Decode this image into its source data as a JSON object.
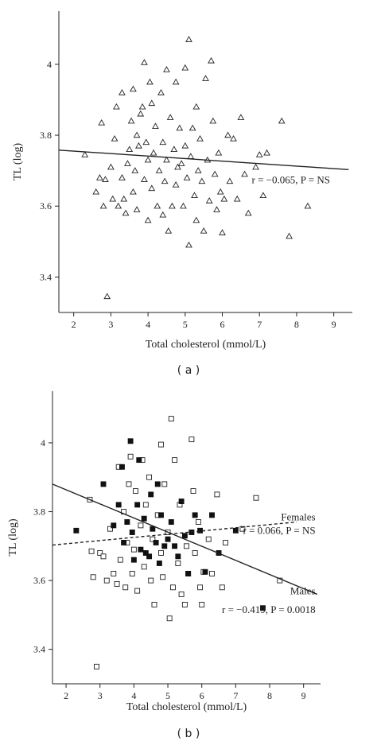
{
  "chart_data": [
    {
      "panel_label": "( a )",
      "type": "scatter",
      "xlabel": "Total cholesterol (mmol/L)",
      "ylabel": "TL (log)",
      "xlim": [
        1.6,
        9.5
      ],
      "ylim": [
        3.3,
        4.15
      ],
      "xticks": [
        "2",
        "3",
        "4",
        "5",
        "6",
        "7",
        "8",
        "9"
      ],
      "yticks": [
        "3.4",
        "3.6",
        "3.8",
        "4"
      ],
      "grid": false,
      "marker": "triangle-open",
      "series": [
        {
          "marker": "triangle-open",
          "points": [
            [
              2.3,
              3.745
            ],
            [
              2.6,
              3.64
            ],
            [
              2.7,
              3.68
            ],
            [
              2.75,
              3.835
            ],
            [
              2.8,
              3.6
            ],
            [
              2.85,
              3.675
            ],
            [
              2.9,
              3.345
            ],
            [
              3.0,
              3.71
            ],
            [
              3.05,
              3.62
            ],
            [
              3.1,
              3.79
            ],
            [
              3.15,
              3.88
            ],
            [
              3.2,
              3.6
            ],
            [
              3.3,
              3.92
            ],
            [
              3.3,
              3.68
            ],
            [
              3.35,
              3.62
            ],
            [
              3.4,
              3.58
            ],
            [
              3.45,
              3.72
            ],
            [
              3.5,
              3.76
            ],
            [
              3.55,
              3.84
            ],
            [
              3.6,
              3.93
            ],
            [
              3.6,
              3.64
            ],
            [
              3.65,
              3.7
            ],
            [
              3.7,
              3.8
            ],
            [
              3.7,
              3.59
            ],
            [
              3.75,
              3.77
            ],
            [
              3.8,
              3.86
            ],
            [
              3.85,
              3.88
            ],
            [
              3.9,
              4.005
            ],
            [
              3.9,
              3.675
            ],
            [
              3.95,
              3.78
            ],
            [
              4.0,
              3.73
            ],
            [
              4.0,
              3.56
            ],
            [
              4.05,
              3.95
            ],
            [
              4.1,
              3.89
            ],
            [
              4.1,
              3.65
            ],
            [
              4.15,
              3.75
            ],
            [
              4.2,
              3.825
            ],
            [
              4.25,
              3.6
            ],
            [
              4.3,
              3.7
            ],
            [
              4.35,
              3.92
            ],
            [
              4.4,
              3.78
            ],
            [
              4.4,
              3.575
            ],
            [
              4.45,
              3.67
            ],
            [
              4.5,
              3.985
            ],
            [
              4.5,
              3.73
            ],
            [
              4.55,
              3.53
            ],
            [
              4.6,
              3.85
            ],
            [
              4.65,
              3.6
            ],
            [
              4.7,
              3.76
            ],
            [
              4.75,
              3.95
            ],
            [
              4.75,
              3.66
            ],
            [
              4.8,
              3.71
            ],
            [
              4.85,
              3.82
            ],
            [
              4.9,
              3.72
            ],
            [
              4.95,
              3.6
            ],
            [
              5.0,
              3.99
            ],
            [
              5.0,
              3.77
            ],
            [
              5.05,
              3.68
            ],
            [
              5.1,
              4.07
            ],
            [
              5.1,
              3.49
            ],
            [
              5.15,
              3.74
            ],
            [
              5.2,
              3.82
            ],
            [
              5.25,
              3.63
            ],
            [
              5.3,
              3.88
            ],
            [
              5.3,
              3.56
            ],
            [
              5.35,
              3.7
            ],
            [
              5.4,
              3.79
            ],
            [
              5.45,
              3.67
            ],
            [
              5.5,
              3.53
            ],
            [
              5.55,
              3.96
            ],
            [
              5.6,
              3.73
            ],
            [
              5.65,
              3.615
            ],
            [
              5.7,
              4.01
            ],
            [
              5.75,
              3.84
            ],
            [
              5.8,
              3.69
            ],
            [
              5.85,
              3.59
            ],
            [
              5.9,
              3.75
            ],
            [
              5.95,
              3.64
            ],
            [
              6.0,
              3.525
            ],
            [
              6.05,
              3.62
            ],
            [
              6.15,
              3.8
            ],
            [
              6.2,
              3.67
            ],
            [
              6.3,
              3.79
            ],
            [
              6.4,
              3.62
            ],
            [
              6.5,
              3.85
            ],
            [
              6.6,
              3.69
            ],
            [
              6.7,
              3.58
            ],
            [
              6.9,
              3.71
            ],
            [
              7.0,
              3.745
            ],
            [
              7.1,
              3.63
            ],
            [
              7.2,
              3.75
            ],
            [
              7.6,
              3.84
            ],
            [
              7.8,
              3.515
            ],
            [
              8.3,
              3.6
            ]
          ]
        }
      ],
      "regression": [
        {
          "style": "solid",
          "x": [
            1.6,
            9.4
          ],
          "y": [
            3.758,
            3.703
          ]
        }
      ],
      "annotations": [
        {
          "text": "r = −0.065, P = NS",
          "x": 8.9,
          "y": 3.665
        }
      ]
    },
    {
      "panel_label": "( b )",
      "type": "scatter",
      "xlabel": "Total cholesterol (mmol/L)",
      "ylabel": "TL (log)",
      "xlim": [
        1.6,
        9.5
      ],
      "ylim": [
        3.3,
        4.15
      ],
      "xticks": [
        "2",
        "3",
        "4",
        "5",
        "6",
        "7",
        "8",
        "9"
      ],
      "yticks": [
        "3.4",
        "3.6",
        "3.8",
        "4"
      ],
      "grid": false,
      "series": [
        {
          "name": "Females",
          "marker": "square-open",
          "points": [
            [
              2.7,
              3.835
            ],
            [
              2.75,
              3.685
            ],
            [
              2.8,
              3.61
            ],
            [
              2.9,
              3.35
            ],
            [
              3.0,
              3.68
            ],
            [
              3.1,
              3.67
            ],
            [
              3.2,
              3.6
            ],
            [
              3.3,
              3.75
            ],
            [
              3.4,
              3.62
            ],
            [
              3.5,
              3.59
            ],
            [
              3.55,
              3.93
            ],
            [
              3.6,
              3.66
            ],
            [
              3.7,
              3.8
            ],
            [
              3.75,
              3.58
            ],
            [
              3.8,
              3.71
            ],
            [
              3.85,
              3.88
            ],
            [
              3.9,
              3.96
            ],
            [
              3.95,
              3.62
            ],
            [
              4.0,
              3.69
            ],
            [
              4.05,
              3.86
            ],
            [
              4.1,
              3.57
            ],
            [
              4.2,
              3.76
            ],
            [
              4.25,
              3.95
            ],
            [
              4.3,
              3.64
            ],
            [
              4.35,
              3.82
            ],
            [
              4.45,
              3.9
            ],
            [
              4.5,
              3.6
            ],
            [
              4.55,
              3.72
            ],
            [
              4.6,
              3.53
            ],
            [
              4.7,
              3.79
            ],
            [
              4.8,
              3.995
            ],
            [
              4.8,
              3.68
            ],
            [
              4.85,
              3.61
            ],
            [
              4.9,
              3.88
            ],
            [
              5.0,
              3.74
            ],
            [
              5.05,
              3.49
            ],
            [
              5.1,
              4.07
            ],
            [
              5.15,
              3.58
            ],
            [
              5.2,
              3.95
            ],
            [
              5.3,
              3.65
            ],
            [
              5.35,
              3.82
            ],
            [
              5.4,
              3.56
            ],
            [
              5.5,
              3.53
            ],
            [
              5.55,
              3.7
            ],
            [
              5.6,
              3.62
            ],
            [
              5.7,
              4.01
            ],
            [
              5.75,
              3.86
            ],
            [
              5.8,
              3.68
            ],
            [
              5.9,
              3.77
            ],
            [
              5.95,
              3.58
            ],
            [
              6.0,
              3.53
            ],
            [
              6.05,
              3.625
            ],
            [
              6.2,
              3.72
            ],
            [
              6.3,
              3.62
            ],
            [
              6.45,
              3.85
            ],
            [
              6.6,
              3.58
            ],
            [
              6.7,
              3.71
            ],
            [
              7.2,
              3.75
            ],
            [
              7.6,
              3.84
            ],
            [
              8.3,
              3.6
            ]
          ]
        },
        {
          "name": "Males",
          "marker": "square-filled",
          "points": [
            [
              2.3,
              3.745
            ],
            [
              3.1,
              3.88
            ],
            [
              3.4,
              3.76
            ],
            [
              3.55,
              3.82
            ],
            [
              3.65,
              3.93
            ],
            [
              3.7,
              3.71
            ],
            [
              3.8,
              3.77
            ],
            [
              3.9,
              4.005
            ],
            [
              3.95,
              3.74
            ],
            [
              4.0,
              3.66
            ],
            [
              4.1,
              3.82
            ],
            [
              4.15,
              3.95
            ],
            [
              4.2,
              3.69
            ],
            [
              4.3,
              3.78
            ],
            [
              4.35,
              3.68
            ],
            [
              4.45,
              3.67
            ],
            [
              4.5,
              3.85
            ],
            [
              4.55,
              3.75
            ],
            [
              4.65,
              3.71
            ],
            [
              4.7,
              3.88
            ],
            [
              4.75,
              3.65
            ],
            [
              4.8,
              3.79
            ],
            [
              4.9,
              3.7
            ],
            [
              5.0,
              3.72
            ],
            [
              5.1,
              3.77
            ],
            [
              5.2,
              3.7
            ],
            [
              5.3,
              3.67
            ],
            [
              5.4,
              3.83
            ],
            [
              5.5,
              3.73
            ],
            [
              5.6,
              3.62
            ],
            [
              5.7,
              3.74
            ],
            [
              5.8,
              3.79
            ],
            [
              5.95,
              3.745
            ],
            [
              6.1,
              3.625
            ],
            [
              6.3,
              3.79
            ],
            [
              6.5,
              3.68
            ],
            [
              7.0,
              3.745
            ],
            [
              7.8,
              3.52
            ]
          ]
        }
      ],
      "regression": [
        {
          "name": "Females",
          "style": "dashed",
          "x": [
            1.6,
            8.8
          ],
          "y": [
            3.703,
            3.77
          ]
        },
        {
          "name": "Males",
          "style": "solid",
          "x": [
            1.6,
            9.4
          ],
          "y": [
            3.88,
            3.56
          ]
        }
      ],
      "annotations": [
        {
          "text": "Females",
          "x": 9.35,
          "y": 3.775
        },
        {
          "text": "r = 0.066, P = NS",
          "x": 9.35,
          "y": 3.735
        },
        {
          "text": "Males",
          "x": 9.35,
          "y": 3.56
        },
        {
          "text": "r = −0.419, P = 0.0018",
          "x": 9.35,
          "y": 3.505
        }
      ]
    }
  ]
}
